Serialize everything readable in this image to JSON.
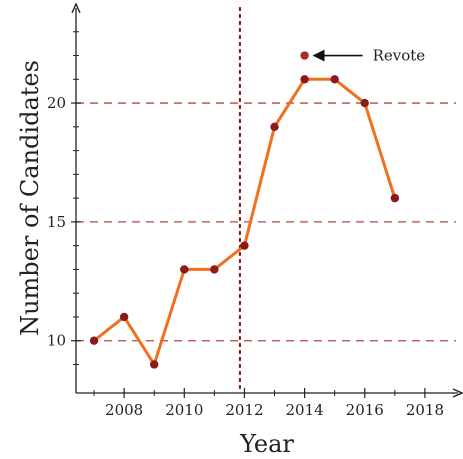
{
  "chart_data": {
    "type": "line",
    "xlabel": "Year",
    "ylabel": "Number of Candidates",
    "xlim": [
      2006.4,
      2019.1
    ],
    "ylim": [
      7.8,
      24.0
    ],
    "x_ticks": [
      2008,
      2010,
      2012,
      2014,
      2016,
      2018
    ],
    "x_tick_labels": [
      "2008",
      "2010",
      "2012",
      "2014",
      "2016",
      "2018"
    ],
    "x_minor_ticks": [
      2007,
      2009,
      2011,
      2013,
      2015,
      2017
    ],
    "y_ticks": [
      10,
      15,
      20
    ],
    "y_tick_labels": [
      "10",
      "15",
      "20"
    ],
    "y_minor_ticks": [
      9,
      11,
      12,
      13,
      14,
      16,
      17,
      18,
      19,
      21,
      22,
      23
    ],
    "grid": "dashed horizontal lines at y = 10, 15, 20",
    "vertical_marker_x": 2011.85,
    "series": [
      {
        "x": [
          2007,
          2008,
          2009,
          2010,
          2011,
          2012,
          2013,
          2014,
          2015,
          2016,
          2017
        ],
        "values": [
          10,
          11,
          9,
          13,
          13,
          14,
          19,
          21,
          21,
          20,
          16
        ],
        "color": "#f07020",
        "marker_color": "#8b1a1a"
      }
    ],
    "extra_points": [
      {
        "x": 2014,
        "y": 22,
        "color": "#a0302a"
      }
    ],
    "annotations": [
      {
        "text": "Revote",
        "x": 2014,
        "y": 22,
        "arrow": true
      }
    ],
    "colors": {
      "line": "#f07020",
      "marker": "#8b1a1a",
      "gridline": "#b5473f",
      "vertical_line": "#8b1a1a",
      "axis": "#222222"
    }
  }
}
